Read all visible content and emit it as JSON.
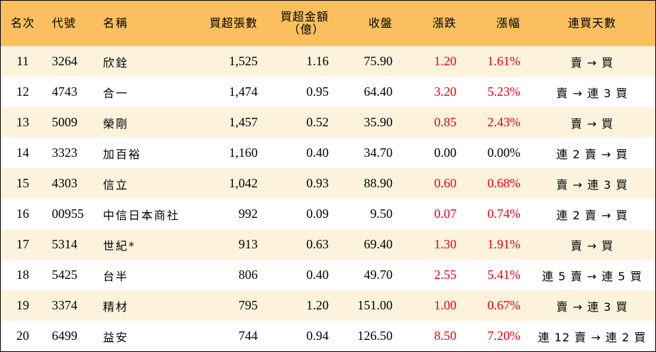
{
  "headers": {
    "rank": "名次",
    "code": "代號",
    "name": "名稱",
    "net_shares": "買超張數",
    "net_amount_line1": "買超金額",
    "net_amount_line2": "（億）",
    "close": "收盤",
    "change": "漲跌",
    "change_pct": "漲幅",
    "consecutive_days": "連買天數"
  },
  "colors": {
    "header_bg": "#fbbf5f",
    "row_alt_bg": "#fdf3dc",
    "up": "#e60012"
  },
  "rows": [
    {
      "rank": "11",
      "code": "3264",
      "name": "欣銓",
      "shares": "1,525",
      "amount": "1.16",
      "close": "75.90",
      "change": "1.20",
      "pct": "1.61%",
      "days": "賣 → 買",
      "up": true
    },
    {
      "rank": "12",
      "code": "4743",
      "name": "合一",
      "shares": "1,474",
      "amount": "0.95",
      "close": "64.40",
      "change": "3.20",
      "pct": "5.23%",
      "days": "賣 → 連 3 買",
      "up": true
    },
    {
      "rank": "13",
      "code": "5009",
      "name": "榮剛",
      "shares": "1,457",
      "amount": "0.52",
      "close": "35.90",
      "change": "0.85",
      "pct": "2.43%",
      "days": "賣 → 買",
      "up": true
    },
    {
      "rank": "14",
      "code": "3323",
      "name": "加百裕",
      "shares": "1,160",
      "amount": "0.40",
      "close": "34.70",
      "change": "0.00",
      "pct": "0.00%",
      "days": "連 2 賣 → 買",
      "up": false
    },
    {
      "rank": "15",
      "code": "4303",
      "name": "信立",
      "shares": "1,042",
      "amount": "0.93",
      "close": "88.90",
      "change": "0.60",
      "pct": "0.68%",
      "days": "賣 → 連 3 買",
      "up": true
    },
    {
      "rank": "16",
      "code": "00955",
      "name": "中信日本商社",
      "shares": "992",
      "amount": "0.09",
      "close": "9.50",
      "change": "0.07",
      "pct": "0.74%",
      "days": "連 2 賣 → 買",
      "up": true
    },
    {
      "rank": "17",
      "code": "5314",
      "name": "世紀*",
      "shares": "913",
      "amount": "0.63",
      "close": "69.40",
      "change": "1.30",
      "pct": "1.91%",
      "days": "賣 → 買",
      "up": true
    },
    {
      "rank": "18",
      "code": "5425",
      "name": "台半",
      "shares": "806",
      "amount": "0.40",
      "close": "49.70",
      "change": "2.55",
      "pct": "5.41%",
      "days": "連 5 賣 → 連 5 買",
      "up": true
    },
    {
      "rank": "19",
      "code": "3374",
      "name": "精材",
      "shares": "795",
      "amount": "1.20",
      "close": "151.00",
      "change": "1.00",
      "pct": "0.67%",
      "days": "賣 → 連 3 買",
      "up": true
    },
    {
      "rank": "20",
      "code": "6499",
      "name": "益安",
      "shares": "744",
      "amount": "0.94",
      "close": "126.50",
      "change": "8.50",
      "pct": "7.20%",
      "days": "連 12 賣 → 連 2 買",
      "up": true
    }
  ]
}
